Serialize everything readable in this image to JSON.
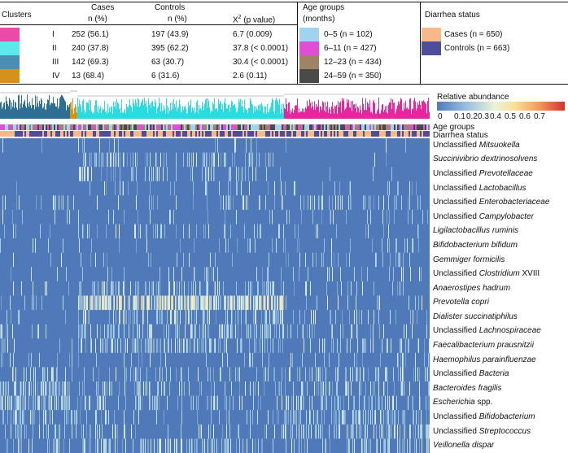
{
  "table": {
    "clusters_header": "Clusters",
    "cases_header": "Cases",
    "cases_sub": "n (%)",
    "controls_header": "Controls",
    "controls_sub": "n (%)",
    "chi_header": "X",
    "chi_sup": "2",
    "chi_tail": " (p value)",
    "rows": [
      {
        "cluster": "I",
        "cases": "252 (56.1)",
        "controls": "197 (43.9)",
        "chi": "6.7 (0.009)",
        "color": "#ec4aa8"
      },
      {
        "cluster": "II",
        "cases": "240 (37.8)",
        "controls": "395 (62.2)",
        "chi": "37.8 (< 0.0001)",
        "color": "#5de8ec"
      },
      {
        "cluster": "III",
        "cases": "142 (69.3)",
        "controls": "63 (30.7)",
        "chi": "30.4 (< 0.0001)",
        "color": "#4a8fb3"
      },
      {
        "cluster": "IV",
        "cases": "13 (68.4)",
        "controls": "6 (31.6)",
        "chi": "2.6 (0.11)",
        "color": "#d4921a"
      }
    ]
  },
  "age": {
    "header": "Age groups",
    "sub": "(months)",
    "items": [
      {
        "label": "0–5 (n = 102)",
        "color": "#9fd3f0"
      },
      {
        "label": "6–11 (n = 427)",
        "color": "#e04ed6"
      },
      {
        "label": "12–23 (n = 434)",
        "color": "#a08366"
      },
      {
        "label": "24–59 (n = 350)",
        "color": "#4a4a4a"
      }
    ]
  },
  "diarrhea": {
    "header": "Diarrhea status",
    "items": [
      {
        "label": "Cases (n = 650)",
        "color": "#f8b98a"
      },
      {
        "label": "Controls (n = 663)",
        "color": "#4d4d98"
      }
    ]
  },
  "colorbar": {
    "title": "Relative abundance",
    "ticks": [
      "0",
      "0.1",
      "0.2",
      "0.3",
      "0.4",
      "0.5",
      "0.6",
      "0.7"
    ]
  },
  "annotation_rows": {
    "age": "Age groups",
    "diarrhea": "Diarrhea status"
  },
  "chart_data": {
    "type": "heatmap",
    "title": "",
    "value_label": "Relative abundance",
    "value_range": [
      0,
      0.7
    ],
    "column_clusters": [
      "III",
      "IV",
      "II",
      "I"
    ],
    "taxa": [
      {
        "prefix": "Unclassified ",
        "name": "Mitsuokella"
      },
      {
        "prefix": "",
        "name": "Succinivibrio dextrinosolvens"
      },
      {
        "prefix": "Unclassified ",
        "name": "Prevotellaceae"
      },
      {
        "prefix": "Unclassified ",
        "name": "Lactobacillus"
      },
      {
        "prefix": "Unclassified ",
        "name": "Enterobacteriaceae"
      },
      {
        "prefix": "Unclassified ",
        "name": "Campylobacter"
      },
      {
        "prefix": "",
        "name": "Ligilactobacillus ruminis"
      },
      {
        "prefix": "",
        "name": "Bifidobacterium bifidum"
      },
      {
        "prefix": "",
        "name": "Gemmiger formicilis"
      },
      {
        "prefix": "Unclassified ",
        "name": "Clostridium",
        "suffix": " XVIII"
      },
      {
        "prefix": "",
        "name": "Anaerostipes hadrum"
      },
      {
        "prefix": "",
        "name": "Prevotella copri"
      },
      {
        "prefix": "",
        "name": "Dialister succinatiphilus"
      },
      {
        "prefix": "Unclassified ",
        "name": "Lachnospiraceae"
      },
      {
        "prefix": "",
        "name": "Faecalibacterium prausnitzii"
      },
      {
        "prefix": "",
        "name": "Haemophilus parainfluenzae"
      },
      {
        "prefix": "Unclassified ",
        "name": "Bacteria"
      },
      {
        "prefix": "",
        "name": "Bacteroides fragilis"
      },
      {
        "prefix": "",
        "name": "Escherichia",
        "suffix": " spp."
      },
      {
        "prefix": "Unclassified ",
        "name": "Bifidobacterium"
      },
      {
        "prefix": "Unclassified ",
        "name": "Streptococcus"
      },
      {
        "prefix": "",
        "name": "Veillonella dispar"
      }
    ]
  }
}
